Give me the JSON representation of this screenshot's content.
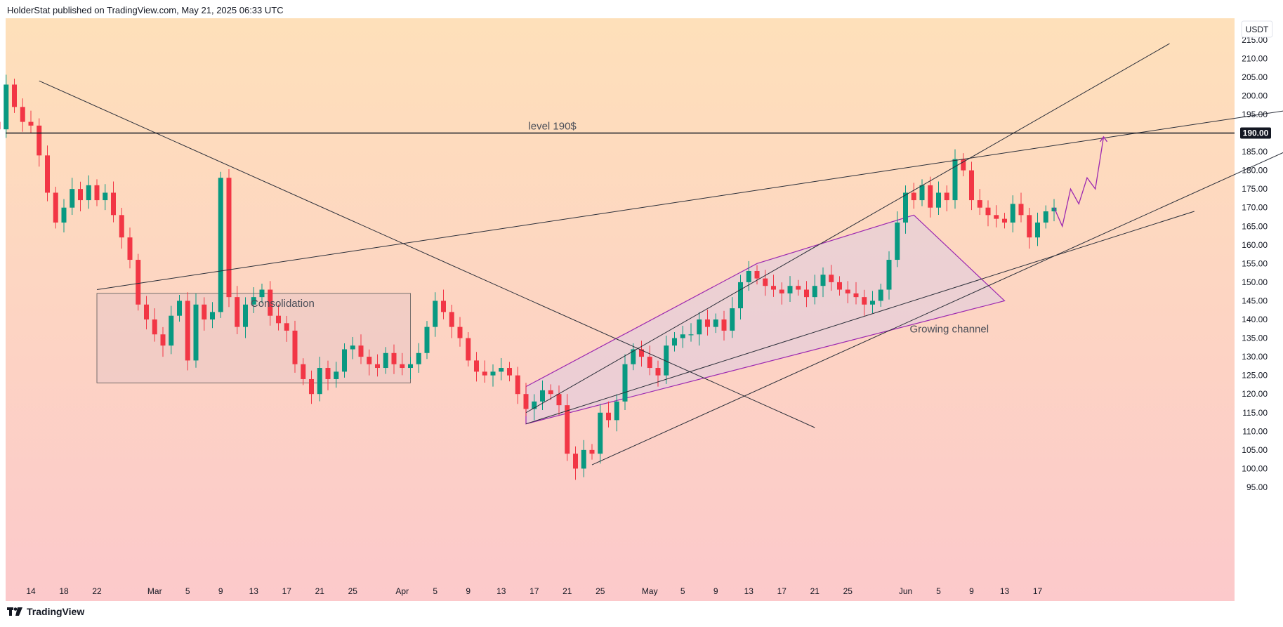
{
  "header": {
    "publisher_line": "HolderStat published on TradingView.com, May 21, 2025 06:33 UTC"
  },
  "footer": {
    "brand": "TradingView"
  },
  "colors": {
    "background_top": "#fee0ba",
    "background_bottom": "#fcc9cb",
    "up": "#089981",
    "down": "#f23645",
    "projection": "#9c27b0",
    "channel_fill": "#d8c9e8"
  },
  "chart_data": {
    "type": "candlestick",
    "instrument_currency": "USDT",
    "y_axis": {
      "ticks": [
        "215.00",
        "210.00",
        "205.00",
        "200.00",
        "195.00",
        "185.00",
        "180.00",
        "175.00",
        "170.00",
        "165.00",
        "160.00",
        "155.00",
        "150.00",
        "145.00",
        "140.00",
        "135.00",
        "130.00",
        "125.00",
        "120.00",
        "115.00",
        "110.00",
        "105.00",
        "100.00",
        "95.00"
      ],
      "ylim": [
        92,
        219
      ],
      "highlighted_level": "190.00"
    },
    "x_axis": {
      "ticks": [
        "14",
        "18",
        "22",
        "Mar",
        "5",
        "9",
        "13",
        "17",
        "21",
        "25",
        "Apr",
        "5",
        "9",
        "13",
        "17",
        "21",
        "25",
        "May",
        "5",
        "9",
        "13",
        "17",
        "21",
        "25",
        "Jun",
        "5",
        "9",
        "13",
        "17"
      ],
      "day_range": [
        -5,
        90
      ]
    },
    "annotations": {
      "level_label": "level 190$",
      "consolidation_label": "Consolidation",
      "channel_label": "Growing channel"
    },
    "price_path": [
      [
        -7,
        206
      ],
      [
        -6,
        196
      ],
      [
        -5,
        193
      ],
      [
        -4,
        191
      ],
      [
        -3,
        203
      ],
      [
        -2,
        197
      ],
      [
        -1,
        193
      ],
      [
        0,
        192
      ],
      [
        1,
        184
      ],
      [
        2,
        174
      ],
      [
        3,
        166
      ],
      [
        4,
        170
      ],
      [
        5,
        175
      ],
      [
        6,
        172
      ],
      [
        7,
        176
      ],
      [
        8,
        172
      ],
      [
        9,
        174
      ],
      [
        10,
        168
      ],
      [
        11,
        162
      ],
      [
        12,
        156
      ],
      [
        13,
        144
      ],
      [
        14,
        140
      ],
      [
        15,
        136
      ],
      [
        16,
        133
      ],
      [
        17,
        141
      ],
      [
        18,
        145
      ],
      [
        19,
        129
      ],
      [
        20,
        144
      ],
      [
        21,
        140
      ],
      [
        22,
        142
      ],
      [
        23,
        178
      ],
      [
        24,
        146
      ],
      [
        25,
        138
      ],
      [
        26,
        144
      ],
      [
        27,
        146
      ],
      [
        28,
        148
      ],
      [
        29,
        141
      ],
      [
        30,
        139
      ],
      [
        31,
        137
      ],
      [
        32,
        128
      ],
      [
        33,
        124
      ],
      [
        34,
        120
      ],
      [
        35,
        127
      ],
      [
        36,
        124
      ],
      [
        37,
        126
      ],
      [
        38,
        132
      ],
      [
        39,
        133
      ],
      [
        40,
        130
      ],
      [
        41,
        128
      ],
      [
        42,
        127
      ],
      [
        43,
        131
      ],
      [
        44,
        128
      ],
      [
        45,
        127
      ],
      [
        46,
        128
      ],
      [
        47,
        131
      ],
      [
        48,
        138
      ],
      [
        49,
        145
      ],
      [
        50,
        142
      ],
      [
        51,
        138
      ],
      [
        52,
        135
      ],
      [
        53,
        129
      ],
      [
        54,
        126
      ],
      [
        55,
        125
      ],
      [
        56,
        126
      ],
      [
        57,
        127
      ],
      [
        58,
        125
      ],
      [
        59,
        120
      ],
      [
        60,
        116
      ],
      [
        61,
        118
      ],
      [
        62,
        121
      ],
      [
        63,
        120
      ],
      [
        64,
        117
      ],
      [
        65,
        104
      ],
      [
        66,
        100
      ],
      [
        67,
        105
      ],
      [
        68,
        104
      ],
      [
        69,
        115
      ],
      [
        70,
        113
      ],
      [
        71,
        118
      ],
      [
        72,
        128
      ],
      [
        73,
        132
      ],
      [
        74,
        130
      ],
      [
        75,
        127
      ],
      [
        76,
        125
      ],
      [
        77,
        133
      ],
      [
        78,
        135
      ],
      [
        79,
        136
      ],
      [
        80,
        136
      ],
      [
        81,
        140
      ],
      [
        82,
        138
      ],
      [
        83,
        140
      ],
      [
        84,
        137
      ],
      [
        85,
        143
      ],
      [
        86,
        150
      ],
      [
        87,
        153
      ],
      [
        88,
        151
      ],
      [
        89,
        149
      ],
      [
        90,
        148
      ],
      [
        91,
        147
      ],
      [
        92,
        149
      ],
      [
        93,
        148
      ],
      [
        94,
        146
      ],
      [
        95,
        149
      ],
      [
        96,
        152
      ],
      [
        97,
        150
      ],
      [
        98,
        148
      ],
      [
        99,
        147
      ],
      [
        100,
        146
      ],
      [
        101,
        144
      ],
      [
        102,
        145
      ],
      [
        103,
        148
      ],
      [
        104,
        156
      ],
      [
        105,
        166
      ],
      [
        106,
        174
      ],
      [
        107,
        172
      ],
      [
        108,
        176
      ],
      [
        109,
        170
      ],
      [
        110,
        174
      ],
      [
        111,
        172
      ],
      [
        112,
        183
      ],
      [
        113,
        180
      ],
      [
        114,
        172
      ],
      [
        115,
        170
      ],
      [
        116,
        168
      ],
      [
        117,
        167
      ],
      [
        118,
        166
      ],
      [
        119,
        171
      ],
      [
        120,
        168
      ],
      [
        121,
        162
      ],
      [
        122,
        166
      ],
      [
        123,
        169
      ],
      [
        124,
        170
      ]
    ],
    "ohlc_note": "price_path gives approximate daily closes; day 0 = Feb 14, 2025 (tick '14')",
    "projection_path": [
      [
        124,
        170
      ],
      [
        125,
        165
      ],
      [
        126,
        175
      ],
      [
        127,
        171
      ],
      [
        128,
        178
      ],
      [
        129,
        175
      ],
      [
        130,
        189
      ]
    ],
    "trendlines": [
      {
        "name": "downtrend",
        "from": [
          1,
          204
        ],
        "to": [
          95,
          111
        ]
      },
      {
        "name": "upper-resistance",
        "from": [
          8,
          148
        ],
        "to": [
          167,
          201
        ]
      },
      {
        "name": "steep-upper",
        "from": [
          60,
          115
        ],
        "to": [
          138,
          214
        ]
      },
      {
        "name": "lower-support",
        "from": [
          68,
          101
        ],
        "to": [
          165,
          198
        ]
      },
      {
        "name": "channel-base",
        "from": [
          60,
          112
        ],
        "to": [
          141,
          169
        ]
      }
    ],
    "consolidation_box": {
      "from_day": 8,
      "to_day": 46,
      "top": 147,
      "bottom": 123
    },
    "growing_channel_polygon": [
      [
        60,
        112
      ],
      [
        60,
        122
      ],
      [
        88,
        155
      ],
      [
        107,
        168
      ],
      [
        118,
        145
      ]
    ]
  }
}
